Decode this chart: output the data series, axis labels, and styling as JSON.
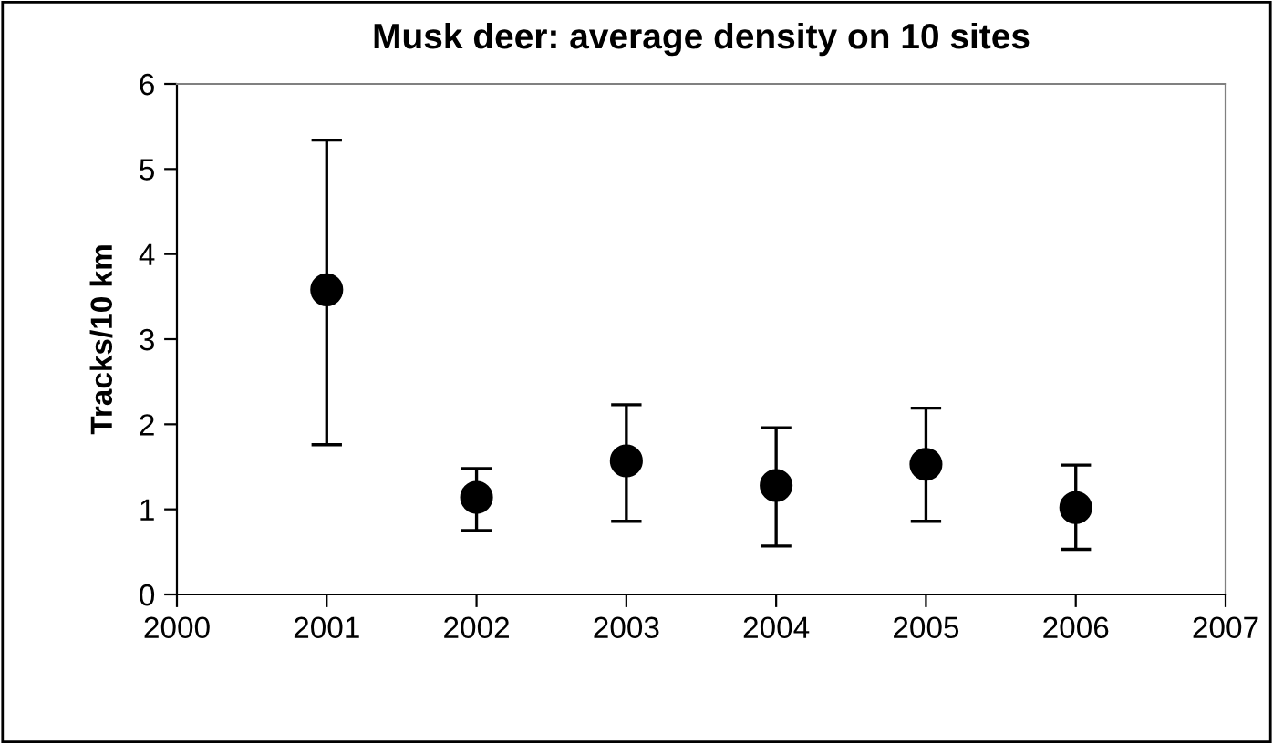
{
  "chart_data": {
    "type": "scatter",
    "title": "Musk deer: average density on 10 sites",
    "ylabel": "Tracks/10 km",
    "x": [
      2001,
      2002,
      2003,
      2004,
      2005,
      2006
    ],
    "series": [
      {
        "color": "#000000",
        "values": [
          3.58,
          1.14,
          1.57,
          1.28,
          1.53,
          1.02
        ],
        "errors": [
          [
            1.76,
            5.34
          ],
          [
            0.75,
            1.48
          ],
          [
            0.86,
            2.23
          ],
          [
            0.57,
            1.96
          ],
          [
            0.86,
            2.19
          ],
          [
            0.53,
            1.52
          ]
        ]
      }
    ],
    "xlim": [
      2000,
      2007
    ],
    "xticks": [
      2000,
      2001,
      2002,
      2003,
      2004,
      2005,
      2006,
      2007
    ],
    "ylim": [
      0,
      6
    ],
    "yticks": [
      0,
      1,
      2,
      3,
      4,
      5,
      6
    ],
    "grid": false,
    "legend": false,
    "marker": "circle"
  }
}
